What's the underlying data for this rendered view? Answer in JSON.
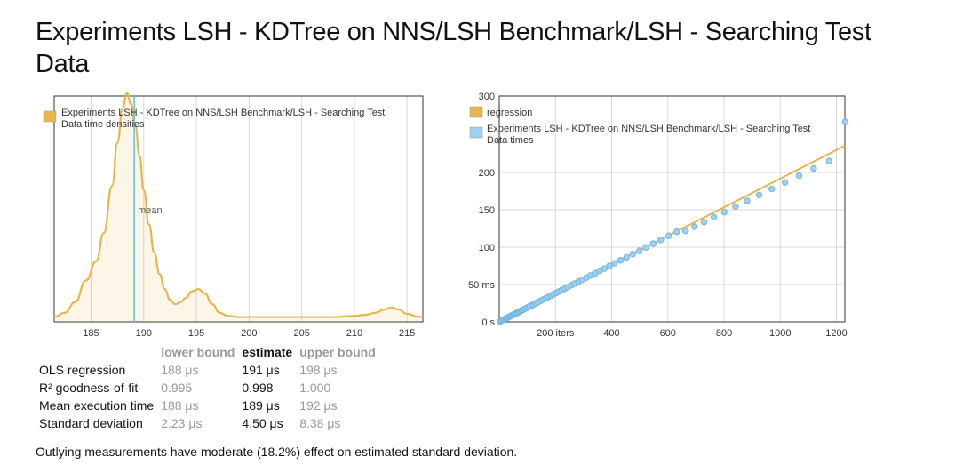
{
  "title": "Experiments LSH - KDTree on NNS/LSH Benchmark/LSH - Searching Test Data",
  "density": {
    "legend_label_line1": "Experiments LSH - KDTree on NNS/LSH Benchmark/LSH - Searching Test",
    "legend_label_line2": "Data time densities",
    "mean_label": "mean",
    "x_ticks": [
      "185",
      "190",
      "195",
      "200",
      "205",
      "210",
      "215"
    ]
  },
  "regression": {
    "legend_regression": "regression",
    "legend_times_line1": "Experiments LSH - KDTree on NNS/LSH Benchmark/LSH - Searching Test",
    "legend_times_line2": "Data times",
    "x_ticks": [
      "200 iters",
      "400",
      "600",
      "800",
      "1000",
      "1200"
    ],
    "y_ticks": [
      "0 s",
      "50 ms",
      "100",
      "150",
      "200",
      "300"
    ]
  },
  "stats": {
    "headers": [
      "",
      "lower bound",
      "estimate",
      "upper bound"
    ],
    "rows": [
      [
        "OLS regression",
        "188 μs",
        "191 μs",
        "198 μs"
      ],
      [
        "R² goodness-of-fit",
        "0.995",
        "0.998",
        "1.000"
      ],
      [
        "Mean execution time",
        "188 μs",
        "189 μs",
        "192 μs"
      ],
      [
        "Standard deviation",
        "2.23 μs",
        "4.50 μs",
        "8.38 μs"
      ]
    ]
  },
  "note": "Outlying measurements have moderate (18.2%) effect on estimated standard deviation.",
  "colors": {
    "density": "#e8b64c",
    "mean_line": "#5bc0e8",
    "regression": "#e8b64c",
    "points": "#9fd0f0",
    "point_stroke": "#6fb4e0",
    "grid": "#d9d9d9"
  },
  "chart_data": [
    {
      "type": "area",
      "title": "",
      "xlabel": "",
      "ylabel": "",
      "xlim": [
        181.5,
        216.5
      ],
      "x_ticks": [
        185,
        190,
        195,
        200,
        205,
        210,
        215
      ],
      "mean": 189.1,
      "grid": "vertical",
      "legend": "top-left",
      "series": [
        {
          "name": "Experiments LSH - KDTree on NNS/LSH Benchmark/LSH - Searching Test Data time densities",
          "x": [
            181.5,
            182.5,
            183.5,
            184.5,
            185.5,
            186.2,
            187.0,
            187.5,
            188.0,
            188.4,
            188.8,
            189.2,
            189.6,
            190.0,
            190.5,
            191.0,
            191.5,
            192.0,
            192.5,
            193.0,
            193.5,
            194.0,
            194.6,
            195.2,
            195.8,
            196.5,
            197.2,
            198.0,
            199.0,
            200.0,
            202.0,
            205.0,
            208.0,
            210.0,
            211.0,
            212.0,
            212.8,
            213.5,
            214.2,
            215.0,
            216.0,
            216.5
          ],
          "y": [
            0.01,
            0.03,
            0.08,
            0.18,
            0.27,
            0.4,
            0.62,
            0.82,
            0.98,
            1.05,
            1.0,
            0.9,
            0.76,
            0.6,
            0.44,
            0.31,
            0.21,
            0.14,
            0.09,
            0.07,
            0.08,
            0.1,
            0.13,
            0.14,
            0.12,
            0.07,
            0.03,
            0.015,
            0.01,
            0.01,
            0.01,
            0.01,
            0.01,
            0.015,
            0.02,
            0.03,
            0.045,
            0.055,
            0.045,
            0.025,
            0.012,
            0.01
          ]
        }
      ]
    },
    {
      "type": "scatter",
      "title": "",
      "xlabel": "",
      "ylabel": "",
      "xlim": [
        0,
        1230
      ],
      "ylim": [
        0,
        300
      ],
      "y_unit": "ms",
      "grid": "both",
      "legend": "top-left",
      "series": [
        {
          "name": "Experiments LSH - KDTree on NNS/LSH Benchmark/LSH - Searching Test Data times",
          "x": [
            3,
            7,
            12,
            16,
            21,
            25,
            29,
            33,
            38,
            42,
            46,
            51,
            55,
            59,
            64,
            68,
            72,
            77,
            81,
            85,
            90,
            96,
            102,
            109,
            116,
            122,
            129,
            136,
            143,
            151,
            159,
            167,
            175,
            184,
            193,
            202,
            212,
            222,
            233,
            244,
            256,
            268,
            282,
            295,
            310,
            325,
            341,
            357,
            374,
            392,
            411,
            432,
            453,
            475,
            498,
            522,
            548,
            575,
            603,
            632,
            663,
            695,
            729,
            764,
            801,
            841,
            882,
            925,
            970,
            1017,
            1067,
            1119,
            1174,
            1231
          ],
          "y": [
            0.6,
            1.3,
            2.3,
            3.1,
            4.0,
            4.8,
            5.5,
            6.3,
            7.3,
            8.0,
            8.8,
            9.7,
            10.5,
            11.3,
            12.2,
            13.0,
            13.8,
            14.7,
            15.5,
            16.2,
            17.2,
            18.3,
            19.5,
            20.8,
            22.2,
            23.3,
            24.7,
            26.0,
            27.3,
            28.8,
            30.4,
            31.9,
            33.4,
            35.1,
            36.9,
            38.6,
            40.5,
            42.4,
            44.5,
            46.6,
            48.9,
            51.2,
            53.9,
            56.3,
            59.2,
            62.1,
            65.1,
            68.2,
            71.4,
            74.9,
            78.5,
            82.5,
            86.5,
            90.7,
            95.1,
            99.7,
            104.7,
            109.8,
            115.2,
            120.7,
            121.8,
            127.4,
            133.6,
            140.2,
            146.9,
            154.4,
            161.9,
            169.8,
            177.9,
            186.6,
            195.6,
            205.2,
            215.0,
            266.0
          ]
        },
        {
          "name": "regression",
          "type": "line",
          "x": [
            0,
            1230
          ],
          "y": [
            0,
            235
          ]
        }
      ]
    }
  ]
}
